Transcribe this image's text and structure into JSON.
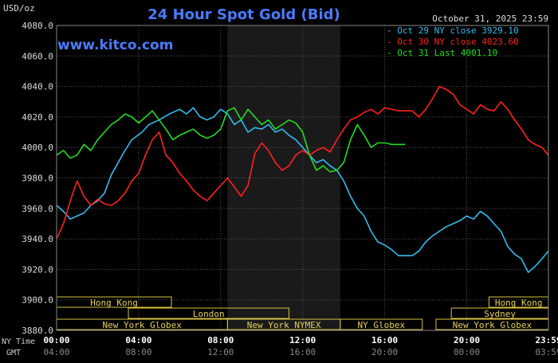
{
  "chart_data": {
    "type": "line",
    "title": "24 Hour Spot Gold (Bid)",
    "unit_label": "USD/oz",
    "date_label": "October 31, 2025 23:59",
    "watermark": "www.kitco.com",
    "ylim": [
      3880,
      4080
    ],
    "y_ticks": [
      "4080.0",
      "4060.0",
      "4040.0",
      "4020.0",
      "4000.0",
      "3980.0",
      "3960.0",
      "3940.0",
      "3920.0",
      "3900.0",
      "3880.0"
    ],
    "y_tick_values": [
      4080,
      4060,
      4040,
      4020,
      4000,
      3980,
      3960,
      3940,
      3920,
      3900,
      3880
    ],
    "x_range_minutes": [
      0,
      1439
    ],
    "x_ticks": [
      {
        "minute": 0,
        "ny": "00:00",
        "gmt": "04:00"
      },
      {
        "minute": 240,
        "ny": "04:00",
        "gmt": "08:00"
      },
      {
        "minute": 480,
        "ny": "08:00",
        "gmt": "12:00"
      },
      {
        "minute": 720,
        "ny": "12:00",
        "gmt": "16:00"
      },
      {
        "minute": 960,
        "ny": "16:00",
        "gmt": "20:00"
      },
      {
        "minute": 1200,
        "ny": "20:00",
        "gmt": "00:00"
      },
      {
        "minute": 1439,
        "ny": "23:59",
        "gmt": "03:59"
      }
    ],
    "x_axis_row_labels": {
      "ny": "NY Time",
      "gmt": "GMT"
    },
    "shaded_session_minutes": [
      500,
      830
    ],
    "sessions": [
      {
        "name": "Hong Kong",
        "row": 0,
        "start": 0,
        "end": 336
      },
      {
        "name": "London",
        "row": 1,
        "start": 210,
        "end": 680
      },
      {
        "name": "New York Globex",
        "row": 2,
        "start": 0,
        "end": 500
      },
      {
        "name": "New York NYMEX",
        "row": 2,
        "start": 500,
        "end": 830
      },
      {
        "name": "NY Globex",
        "row": 2,
        "start": 830,
        "end": 1070
      },
      {
        "name": "Hong Kong",
        "row": 0,
        "start": 1265,
        "end": 1439
      },
      {
        "name": "Sydney",
        "row": 1,
        "start": 1155,
        "end": 1439
      },
      {
        "name": "New York Globex",
        "row": 2,
        "start": 1110,
        "end": 1439
      }
    ],
    "series": [
      {
        "name": "Oct 29 NY close 3929.10",
        "color": "#33bbee",
        "points": [
          [
            0,
            3962
          ],
          [
            20,
            3958
          ],
          [
            40,
            3953
          ],
          [
            60,
            3955
          ],
          [
            80,
            3957
          ],
          [
            100,
            3962
          ],
          [
            120,
            3965
          ],
          [
            140,
            3970
          ],
          [
            160,
            3982
          ],
          [
            180,
            3990
          ],
          [
            200,
            3998
          ],
          [
            220,
            4005
          ],
          [
            250,
            4010
          ],
          [
            270,
            4015
          ],
          [
            300,
            4018
          ],
          [
            330,
            4022
          ],
          [
            360,
            4025
          ],
          [
            380,
            4022
          ],
          [
            400,
            4026
          ],
          [
            420,
            4020
          ],
          [
            440,
            4018
          ],
          [
            460,
            4020
          ],
          [
            480,
            4025
          ],
          [
            500,
            4022
          ],
          [
            520,
            4015
          ],
          [
            540,
            4018
          ],
          [
            560,
            4010
          ],
          [
            580,
            4013
          ],
          [
            600,
            4012
          ],
          [
            620,
            4015
          ],
          [
            640,
            4010
          ],
          [
            660,
            4012
          ],
          [
            680,
            4008
          ],
          [
            700,
            4005
          ],
          [
            720,
            4000
          ],
          [
            740,
            3995
          ],
          [
            760,
            3990
          ],
          [
            780,
            3992
          ],
          [
            800,
            3988
          ],
          [
            820,
            3985
          ],
          [
            840,
            3978
          ],
          [
            860,
            3968
          ],
          [
            880,
            3960
          ],
          [
            900,
            3955
          ],
          [
            920,
            3945
          ],
          [
            940,
            3938
          ],
          [
            960,
            3936
          ],
          [
            980,
            3933
          ],
          [
            1000,
            3929
          ],
          [
            1040,
            3929
          ],
          [
            1060,
            3932
          ],
          [
            1080,
            3938
          ],
          [
            1100,
            3942
          ],
          [
            1120,
            3945
          ],
          [
            1140,
            3948
          ],
          [
            1160,
            3950
          ],
          [
            1180,
            3952
          ],
          [
            1200,
            3955
          ],
          [
            1220,
            3953
          ],
          [
            1240,
            3958
          ],
          [
            1260,
            3955
          ],
          [
            1280,
            3950
          ],
          [
            1300,
            3945
          ],
          [
            1320,
            3935
          ],
          [
            1340,
            3930
          ],
          [
            1360,
            3927
          ],
          [
            1380,
            3918
          ],
          [
            1400,
            3922
          ],
          [
            1420,
            3927
          ],
          [
            1439,
            3932
          ]
        ]
      },
      {
        "name": "Oct 30 NY close 4023.60",
        "color": "#ff2020",
        "points": [
          [
            0,
            3940
          ],
          [
            20,
            3950
          ],
          [
            40,
            3965
          ],
          [
            60,
            3978
          ],
          [
            80,
            3968
          ],
          [
            100,
            3962
          ],
          [
            120,
            3966
          ],
          [
            140,
            3963
          ],
          [
            160,
            3962
          ],
          [
            180,
            3965
          ],
          [
            200,
            3970
          ],
          [
            220,
            3978
          ],
          [
            240,
            3983
          ],
          [
            260,
            3995
          ],
          [
            280,
            4005
          ],
          [
            300,
            4010
          ],
          [
            320,
            3995
          ],
          [
            340,
            3990
          ],
          [
            360,
            3983
          ],
          [
            380,
            3978
          ],
          [
            400,
            3972
          ],
          [
            420,
            3968
          ],
          [
            440,
            3965
          ],
          [
            460,
            3970
          ],
          [
            480,
            3975
          ],
          [
            500,
            3980
          ],
          [
            520,
            3974
          ],
          [
            540,
            3968
          ],
          [
            560,
            3975
          ],
          [
            580,
            3996
          ],
          [
            600,
            4003
          ],
          [
            620,
            3998
          ],
          [
            640,
            3990
          ],
          [
            660,
            3985
          ],
          [
            680,
            3988
          ],
          [
            700,
            3995
          ],
          [
            720,
            3998
          ],
          [
            740,
            3995
          ],
          [
            760,
            3998
          ],
          [
            780,
            4000
          ],
          [
            800,
            3997
          ],
          [
            820,
            4005
          ],
          [
            840,
            4012
          ],
          [
            860,
            4018
          ],
          [
            880,
            4020
          ],
          [
            900,
            4023
          ],
          [
            920,
            4025
          ],
          [
            940,
            4022
          ],
          [
            960,
            4026
          ],
          [
            1000,
            4024
          ],
          [
            1040,
            4024
          ],
          [
            1060,
            4020
          ],
          [
            1080,
            4025
          ],
          [
            1100,
            4032
          ],
          [
            1120,
            4040
          ],
          [
            1140,
            4038
          ],
          [
            1160,
            4035
          ],
          [
            1180,
            4028
          ],
          [
            1200,
            4025
          ],
          [
            1220,
            4022
          ],
          [
            1240,
            4028
          ],
          [
            1260,
            4025
          ],
          [
            1280,
            4024
          ],
          [
            1300,
            4030
          ],
          [
            1320,
            4025
          ],
          [
            1340,
            4018
          ],
          [
            1360,
            4012
          ],
          [
            1380,
            4005
          ],
          [
            1400,
            4002
          ],
          [
            1420,
            4000
          ],
          [
            1439,
            3995
          ]
        ]
      },
      {
        "name": "Oct 31 Last 4001.10",
        "color": "#22dd22",
        "points": [
          [
            0,
            3995
          ],
          [
            20,
            3998
          ],
          [
            40,
            3993
          ],
          [
            60,
            3995
          ],
          [
            80,
            4002
          ],
          [
            100,
            3998
          ],
          [
            120,
            4005
          ],
          [
            140,
            4010
          ],
          [
            160,
            4015
          ],
          [
            180,
            4018
          ],
          [
            200,
            4022
          ],
          [
            220,
            4020
          ],
          [
            240,
            4016
          ],
          [
            260,
            4020
          ],
          [
            280,
            4024
          ],
          [
            300,
            4018
          ],
          [
            320,
            4012
          ],
          [
            340,
            4005
          ],
          [
            360,
            4008
          ],
          [
            380,
            4010
          ],
          [
            400,
            4012
          ],
          [
            420,
            4008
          ],
          [
            440,
            4006
          ],
          [
            460,
            4008
          ],
          [
            480,
            4012
          ],
          [
            500,
            4024
          ],
          [
            520,
            4026
          ],
          [
            540,
            4018
          ],
          [
            560,
            4025
          ],
          [
            580,
            4020
          ],
          [
            600,
            4015
          ],
          [
            620,
            4018
          ],
          [
            640,
            4012
          ],
          [
            660,
            4015
          ],
          [
            680,
            4018
          ],
          [
            700,
            4016
          ],
          [
            720,
            4010
          ],
          [
            740,
            3995
          ],
          [
            760,
            3985
          ],
          [
            780,
            3988
          ],
          [
            800,
            3984
          ],
          [
            820,
            3985
          ],
          [
            840,
            3990
          ],
          [
            860,
            4005
          ],
          [
            880,
            4015
          ],
          [
            900,
            4008
          ],
          [
            920,
            4000
          ],
          [
            940,
            4003
          ],
          [
            960,
            4003
          ],
          [
            980,
            4002
          ],
          [
            1000,
            4002
          ],
          [
            1020,
            4002
          ]
        ]
      }
    ]
  }
}
